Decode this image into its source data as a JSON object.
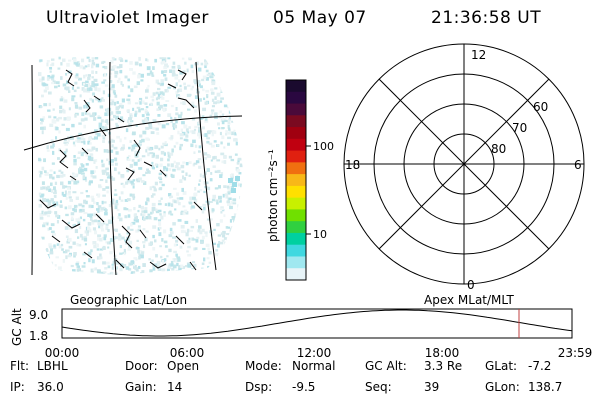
{
  "header": {
    "instrument": "Ultraviolet Imager",
    "date": "05 May 07",
    "time": "21:36:58 UT"
  },
  "colorbar": {
    "unit_label": "photon cm⁻²s⁻¹",
    "ticks": [
      "100",
      "10"
    ],
    "colors": [
      "#1a0a2e",
      "#2a0840",
      "#4a0a3a",
      "#7a0a20",
      "#a00010",
      "#c00010",
      "#e02010",
      "#f07010",
      "#f8b818",
      "#ffe000",
      "#c8f000",
      "#70e000",
      "#30d040",
      "#00d0a0",
      "#40d8e0",
      "#a0e8f0",
      "#e8f4f8"
    ]
  },
  "polar": {
    "mlt_labels": [
      "12",
      "6",
      "0",
      "18"
    ],
    "mlat_labels": [
      "60",
      "70",
      "80"
    ]
  },
  "labels": {
    "left_plot": "Geographic Lat/Lon",
    "right_plot": "Apex MLat/MLT"
  },
  "altitude": {
    "axis_title": "GC Alt",
    "y_ticks": [
      "9.0",
      "1.8"
    ],
    "x_ticks": [
      "00:00",
      "06:00",
      "12:00",
      "18:00",
      "23:59"
    ],
    "marker_color": "#c04040",
    "line_color": "#000000"
  },
  "info": {
    "row1": [
      {
        "label": "Flt:",
        "value": "LBHL"
      },
      {
        "label": "Door:",
        "value": "Open"
      },
      {
        "label": "Mode:",
        "value": "Normal"
      },
      {
        "label": "GC Alt:",
        "value": "3.3 Re"
      },
      {
        "label": "GLat:",
        "value": "-7.2"
      }
    ],
    "row2": [
      {
        "label": "IP:",
        "value": "36.0"
      },
      {
        "label": "Gain:",
        "value": "14"
      },
      {
        "label": "Dsp:",
        "value": "-9.5"
      },
      {
        "label": "Seq:",
        "value": "39"
      },
      {
        "label": "GLon:",
        "value": "138.7"
      }
    ]
  }
}
